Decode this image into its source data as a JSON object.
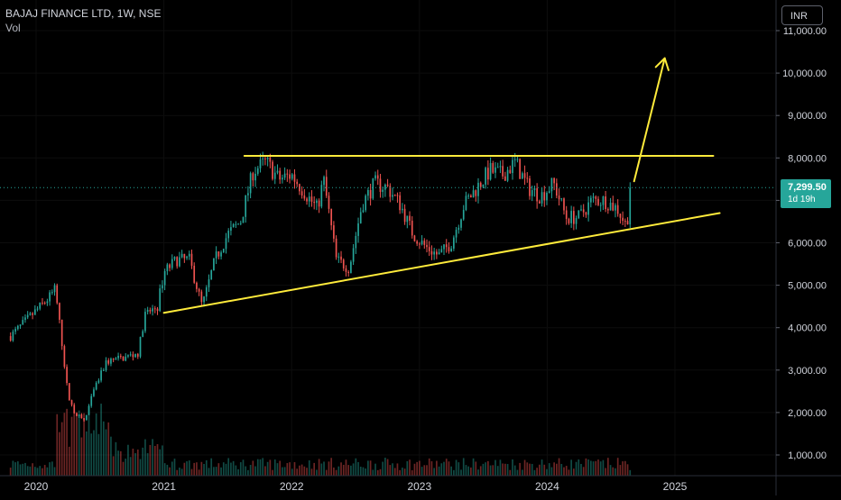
{
  "header": {
    "symbol": "BAJAJ FINANCE LTD, 1W, NSE",
    "volume_label": "Vol"
  },
  "currency": "INR",
  "last_price": {
    "value": "7,299.50",
    "countdown": "1d 19h",
    "color": "#26a69a"
  },
  "colors": {
    "background": "#000000",
    "up": "#26a69a",
    "down": "#ef5350",
    "annotation": "#ffeb3b",
    "axis_text": "#d1d4dc"
  },
  "chart_data": {
    "type": "candlestick",
    "timeframe": "1W",
    "price_axis": {
      "ylim": [
        600,
        11200
      ],
      "ticks": [
        1000,
        2000,
        3000,
        4000,
        5000,
        6000,
        7000,
        8000,
        9000,
        10000,
        11000
      ],
      "tick_labels": [
        "1,000.00",
        "2,000.00",
        "3,000.00",
        "4,000.00",
        "5,000.00",
        "6,000.00",
        "7,000.00",
        "8,000.00",
        "9,000.00",
        "10,000.00",
        "11,000.00"
      ]
    },
    "time_axis": {
      "xlim": [
        2019.8,
        2025.6
      ],
      "ticks": [
        2020,
        2021,
        2022,
        2023,
        2024,
        2025
      ],
      "tick_labels": [
        "2020",
        "2021",
        "2022",
        "2023",
        "2024",
        "2025"
      ]
    },
    "price_path": [
      [
        2019.8,
        3800
      ],
      [
        2019.95,
        4250
      ],
      [
        2020.1,
        4700
      ],
      [
        2020.15,
        4900
      ],
      [
        2020.2,
        3700
      ],
      [
        2020.25,
        2400
      ],
      [
        2020.3,
        2000
      ],
      [
        2020.38,
        1800
      ],
      [
        2020.45,
        2500
      ],
      [
        2020.55,
        3200
      ],
      [
        2020.7,
        3300
      ],
      [
        2020.8,
        3400
      ],
      [
        2020.85,
        4300
      ],
      [
        2020.95,
        4500
      ],
      [
        2021.0,
        5300
      ],
      [
        2021.1,
        5600
      ],
      [
        2021.2,
        5600
      ],
      [
        2021.3,
        4500
      ],
      [
        2021.4,
        5600
      ],
      [
        2021.5,
        6200
      ],
      [
        2021.6,
        6500
      ],
      [
        2021.7,
        7700
      ],
      [
        2021.8,
        7900
      ],
      [
        2021.9,
        7500
      ],
      [
        2022.0,
        7600
      ],
      [
        2022.1,
        7200
      ],
      [
        2022.2,
        6800
      ],
      [
        2022.25,
        7500
      ],
      [
        2022.35,
        5600
      ],
      [
        2022.45,
        5400
      ],
      [
        2022.55,
        6900
      ],
      [
        2022.65,
        7400
      ],
      [
        2022.75,
        7300
      ],
      [
        2022.85,
        6900
      ],
      [
        2022.95,
        6200
      ],
      [
        2023.05,
        5900
      ],
      [
        2023.15,
        5700
      ],
      [
        2023.25,
        6000
      ],
      [
        2023.35,
        6900
      ],
      [
        2023.45,
        7300
      ],
      [
        2023.55,
        7700
      ],
      [
        2023.65,
        7600
      ],
      [
        2023.75,
        7900
      ],
      [
        2023.85,
        7300
      ],
      [
        2023.95,
        7100
      ],
      [
        2024.05,
        7400
      ],
      [
        2024.15,
        6600
      ],
      [
        2024.25,
        6600
      ],
      [
        2024.35,
        7000
      ],
      [
        2024.45,
        7000
      ],
      [
        2024.55,
        6800
      ],
      [
        2024.62,
        6400
      ],
      [
        2024.66,
        7300
      ]
    ],
    "annotations": [
      {
        "type": "horizontal_resistance",
        "points": [
          [
            2021.63,
            8050
          ],
          [
            2025.3,
            8050
          ]
        ]
      },
      {
        "type": "rising_support",
        "points": [
          [
            2021.0,
            4350
          ],
          [
            2025.35,
            6700
          ]
        ]
      },
      {
        "type": "breakout_arrow",
        "points": [
          [
            2024.68,
            7450
          ],
          [
            2024.92,
            10350
          ]
        ]
      }
    ],
    "last_value": 7299.5
  }
}
